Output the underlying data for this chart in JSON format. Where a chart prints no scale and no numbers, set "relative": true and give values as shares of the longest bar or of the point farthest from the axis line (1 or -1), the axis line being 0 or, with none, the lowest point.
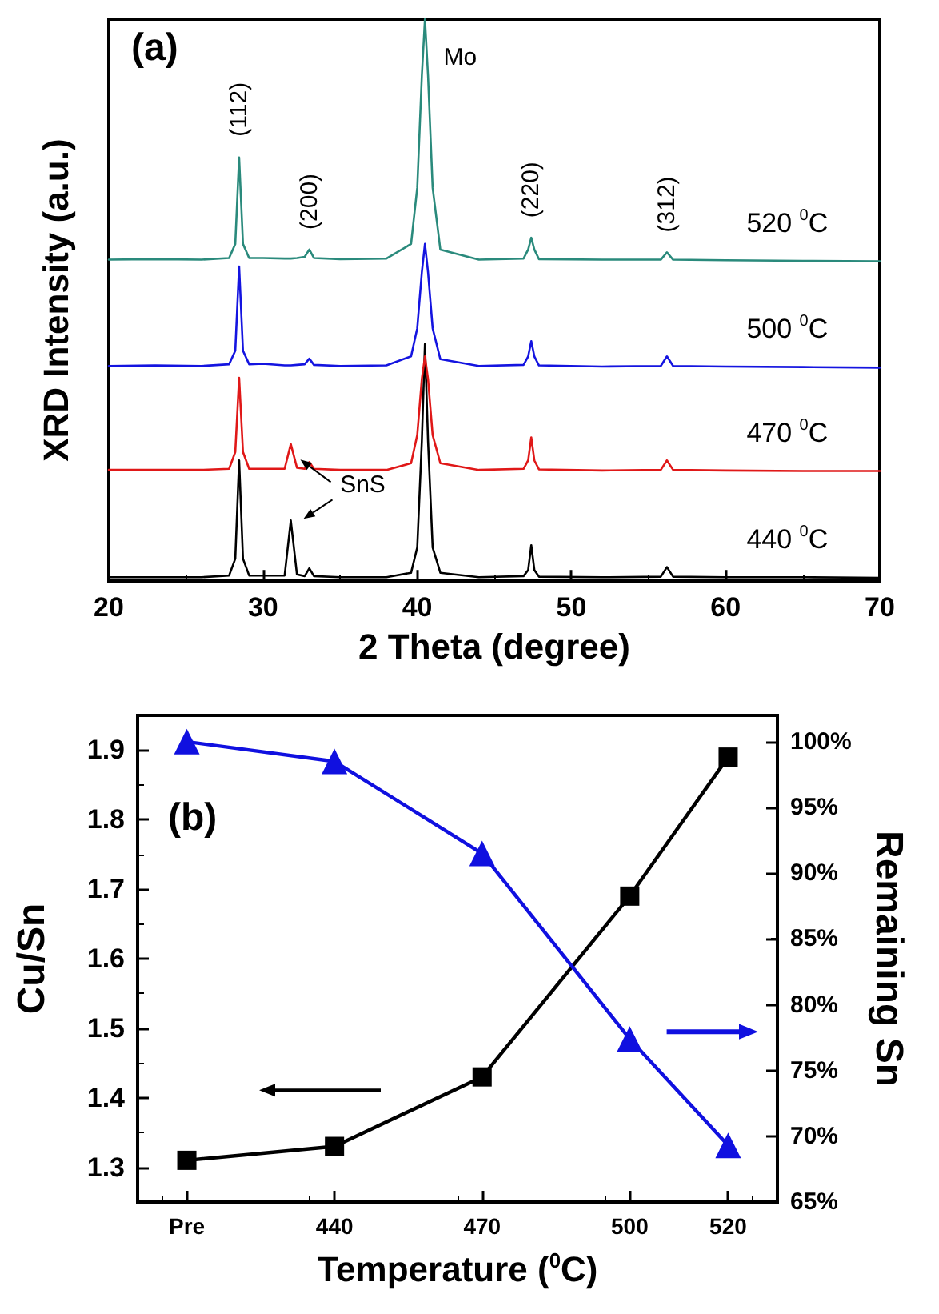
{
  "chart_data": [
    {
      "type": "line",
      "xlabel": "2 Theta (degree)",
      "ylabel": "XRD Intensity (a.u.)",
      "relative": true,
      "tick_labels": "x",
      "marker": "none",
      "xlim": [
        20,
        70
      ],
      "xticks": [
        20,
        30,
        40,
        50,
        60,
        70
      ],
      "x": [
        20,
        23,
        26,
        27.8,
        28.2,
        28.45,
        28.7,
        29.1,
        30,
        31.4,
        31.8,
        32.2,
        32.7,
        33.0,
        33.3,
        35,
        38,
        39.6,
        40.0,
        40.3,
        40.5,
        40.7,
        41.0,
        41.5,
        44,
        46.9,
        47.2,
        47.4,
        47.6,
        47.9,
        52,
        55.8,
        56.2,
        56.6,
        60,
        65,
        70
      ],
      "series": [
        {
          "name": "440 $^{0}$C",
          "color": "#000000",
          "values": [
            0.007,
            0.007,
            0.007,
            0.01,
            0.04,
            0.215,
            0.04,
            0.01,
            0.01,
            0.01,
            0.108,
            0.012,
            0.009,
            0.023,
            0.009,
            0.007,
            0.007,
            0.015,
            0.06,
            0.25,
            0.422,
            0.25,
            0.06,
            0.015,
            0.007,
            0.009,
            0.02,
            0.064,
            0.02,
            0.008,
            0.007,
            0.008,
            0.025,
            0.008,
            0.007,
            0.007,
            0.006
          ]
        },
        {
          "name": "470 $^{0}$C",
          "color": "#e01818",
          "values": [
            0.198,
            0.198,
            0.198,
            0.2,
            0.23,
            0.362,
            0.23,
            0.2,
            0.2,
            0.2,
            0.244,
            0.202,
            0.2,
            0.212,
            0.2,
            0.198,
            0.198,
            0.21,
            0.26,
            0.36,
            0.4,
            0.36,
            0.26,
            0.21,
            0.198,
            0.2,
            0.215,
            0.256,
            0.215,
            0.199,
            0.197,
            0.198,
            0.215,
            0.198,
            0.197,
            0.196,
            0.196
          ]
        },
        {
          "name": "500 $^{0}$C",
          "color": "#1414e0",
          "values": [
            0.383,
            0.384,
            0.383,
            0.386,
            0.41,
            0.56,
            0.41,
            0.386,
            0.387,
            0.384,
            0.384,
            0.385,
            0.386,
            0.396,
            0.385,
            0.383,
            0.384,
            0.4,
            0.45,
            0.55,
            0.6,
            0.55,
            0.45,
            0.395,
            0.383,
            0.385,
            0.4,
            0.427,
            0.4,
            0.384,
            0.382,
            0.383,
            0.4,
            0.383,
            0.382,
            0.381,
            0.38
          ]
        },
        {
          "name": "520 $^{0}$C",
          "color": "#2a8a7c",
          "values": [
            0.572,
            0.573,
            0.572,
            0.575,
            0.6,
            0.754,
            0.6,
            0.575,
            0.575,
            0.574,
            0.574,
            0.575,
            0.577,
            0.59,
            0.575,
            0.573,
            0.574,
            0.6,
            0.7,
            0.9,
            1,
            0.9,
            0.7,
            0.59,
            0.572,
            0.574,
            0.59,
            0.611,
            0.59,
            0.573,
            0.572,
            0.572,
            0.585,
            0.572,
            0.571,
            0.57,
            0.569
          ]
        }
      ],
      "annotations": [
        "(a)",
        {
          "text": "Mo",
          "x": 40.5,
          "y": 1
        },
        {
          "text": "(112)",
          "x": 28.45,
          "y": 0.754
        },
        {
          "text": "(200)",
          "x": 33.0,
          "y": 0.59
        },
        {
          "text": "(220)",
          "x": 47.4,
          "y": 0.611
        },
        {
          "text": "(312)",
          "x": 56.2,
          "y": 0.585
        },
        {
          "text": "SnS",
          "x": 31.8,
          "y": 0.108
        }
      ]
    },
    {
      "type": "line",
      "xlabel": "Temperature ($^{0}$C)",
      "ylabel": "Cu/Sn",
      "y2label": "Remaining Sn",
      "xlim": [
        400,
        530
      ],
      "xticks": [
        {
          "value": 410,
          "label": "Pre"
        },
        440,
        470,
        500,
        520
      ],
      "x": [
        410,
        440,
        470,
        500,
        520
      ],
      "ylim": [
        1.25,
        1.95
      ],
      "yticks": [
        1.3,
        1.4,
        1.5,
        1.6,
        1.7,
        1.8,
        1.9
      ],
      "y2lim": [
        65,
        102
      ],
      "y2ticks": [
        {
          "value": 65,
          "label": "65%"
        },
        {
          "value": 70,
          "label": "70%"
        },
        {
          "value": 75,
          "label": "75%"
        },
        {
          "value": 80,
          "label": "80%"
        },
        {
          "value": 85,
          "label": "85%"
        },
        {
          "value": 90,
          "label": "90%"
        },
        {
          "value": 95,
          "label": "95%"
        },
        {
          "value": 100,
          "label": "100%"
        }
      ],
      "series": [
        {
          "color": "#000000",
          "marker": "square",
          "values": [
            1.31,
            1.33,
            1.43,
            1.69,
            1.89
          ]
        },
        {
          "color": "#1010e0",
          "marker": "triangle",
          "axis": "y2",
          "values": [
            100,
            98.5,
            91.5,
            77.4,
            69.3
          ]
        }
      ],
      "annotations": [
        "(b)"
      ]
    }
  ]
}
